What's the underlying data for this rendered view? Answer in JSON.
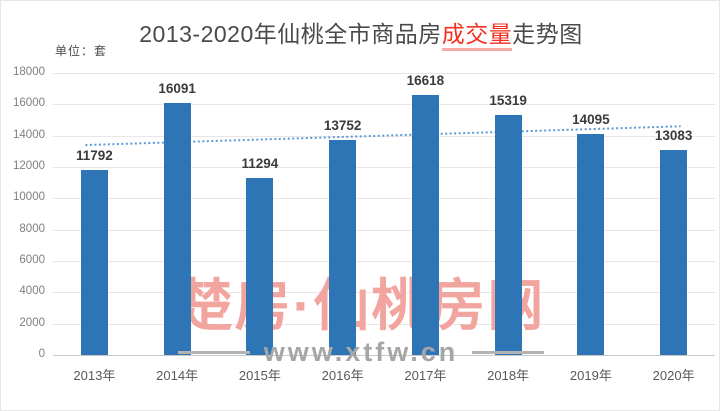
{
  "title": {
    "prefix": "2013-2020年仙桃全市商品房",
    "highlight": "成交量",
    "suffix": "走势图"
  },
  "unit_label": "单位：套",
  "chart_data": {
    "type": "bar",
    "title": "2013-2020年仙桃全市商品房成交量走势图",
    "categories": [
      "2013年",
      "2014年",
      "2015年",
      "2016年",
      "2017年",
      "2018年",
      "2019年",
      "2020年"
    ],
    "values": [
      11792,
      16091,
      11294,
      13752,
      16618,
      15319,
      14095,
      13083
    ],
    "xlabel": "",
    "ylabel": "单位：套",
    "ylim": [
      0,
      18000
    ],
    "yticks": [
      0,
      2000,
      4000,
      6000,
      8000,
      10000,
      12000,
      14000,
      16000,
      18000
    ],
    "grid": true,
    "legend": false,
    "trendline": {
      "style": "dotted",
      "start_value": 13400,
      "end_value": 14600
    }
  },
  "watermark": {
    "brand": "楚房·仙桃房网",
    "site": "www.xtfw.cn"
  },
  "colors": {
    "bar": "#2e75b6",
    "trend": "#5b9bd5",
    "title_highlight": "#f5301f",
    "watermark_brand": "#f2a49f",
    "watermark_site": "#a6a6a6",
    "gridline": "#e7e7e7"
  }
}
